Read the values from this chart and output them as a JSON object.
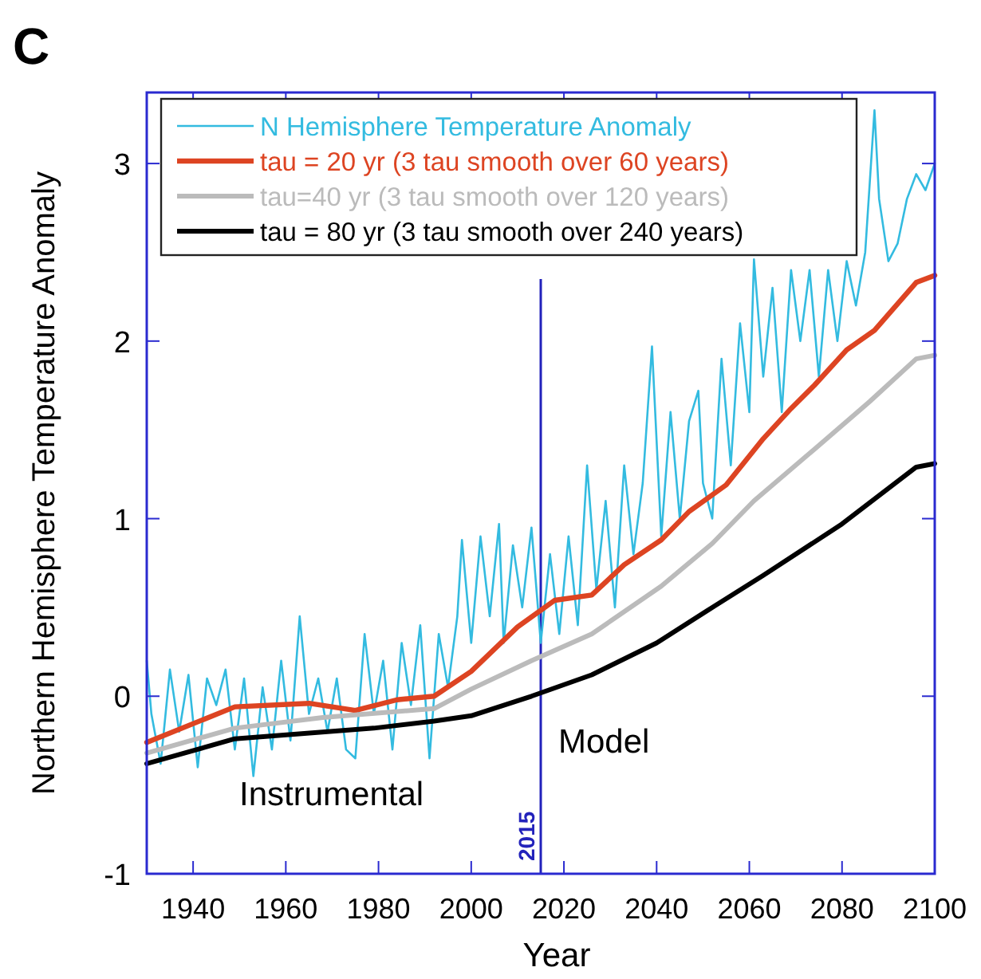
{
  "chart_data": {
    "type": "line",
    "title": "C",
    "xlabel": "Year",
    "ylabel": "Northern Hemisphere Temperature Anomaly",
    "xlim": [
      1930,
      2100
    ],
    "xticks": [
      1940,
      1960,
      1980,
      2000,
      2020,
      2040,
      2060,
      2080,
      2100
    ],
    "ylim": [
      -1,
      3.4
    ],
    "yticks": [
      -1,
      0,
      1,
      2,
      3
    ],
    "legend": "top left",
    "grid": false,
    "line_style": "solid",
    "ref_lines": [
      {
        "axis": "x",
        "value": 2015,
        "label": "2015",
        "color": "#2222bb"
      }
    ],
    "annotations": [
      "Instrumental",
      "Model"
    ],
    "series": [
      {
        "name": "N Hemisphere Temperature Anomaly",
        "color": "#33bbe0",
        "x": [
          1930,
          1931,
          1933,
          1935,
          1937,
          1939,
          1941,
          1943,
          1945,
          1947,
          1949,
          1951,
          1953,
          1955,
          1957,
          1959,
          1961,
          1963,
          1965,
          1967,
          1969,
          1971,
          1973,
          1975,
          1977,
          1979,
          1981,
          1983,
          1985,
          1987,
          1989,
          1991,
          1993,
          1995,
          1997,
          1998,
          2000,
          2002,
          2004,
          2006,
          2007,
          2009,
          2011,
          2013,
          2015,
          2017,
          2019,
          2021,
          2023,
          2025,
          2027,
          2029,
          2031,
          2033,
          2035,
          2037,
          2039,
          2041,
          2043,
          2045,
          2047,
          2049,
          2050,
          2052,
          2054,
          2056,
          2058,
          2060,
          2061,
          2063,
          2065,
          2067,
          2069,
          2071,
          2073,
          2075,
          2077,
          2079,
          2081,
          2083,
          2085,
          2087,
          2088,
          2090,
          2092,
          2094,
          2096,
          2098,
          2100
        ],
        "values": [
          0.2,
          -0.1,
          -0.38,
          0.15,
          -0.2,
          0.12,
          -0.4,
          0.1,
          -0.05,
          0.15,
          -0.3,
          0.1,
          -0.45,
          0.05,
          -0.3,
          0.2,
          -0.25,
          0.45,
          -0.1,
          0.1,
          -0.2,
          0.1,
          -0.3,
          -0.35,
          0.35,
          -0.1,
          0.2,
          -0.3,
          0.3,
          -0.05,
          0.4,
          -0.35,
          0.35,
          0.05,
          0.45,
          0.88,
          0.3,
          0.9,
          0.45,
          0.97,
          0.3,
          0.85,
          0.5,
          0.95,
          0.3,
          0.8,
          0.35,
          0.9,
          0.4,
          1.3,
          0.6,
          1.1,
          0.5,
          1.3,
          0.8,
          1.2,
          1.97,
          0.9,
          1.6,
          1.0,
          1.55,
          1.72,
          1.2,
          1.0,
          1.9,
          1.3,
          2.1,
          1.6,
          2.46,
          1.8,
          2.3,
          1.6,
          2.4,
          2.0,
          2.4,
          1.8,
          2.4,
          2.0,
          2.45,
          2.2,
          2.5,
          3.3,
          2.8,
          2.45,
          2.55,
          2.8,
          2.94,
          2.85,
          3.0
        ]
      },
      {
        "name": "tau = 20 yr (3 tau smooth over 60 years)",
        "color": "#dd4422",
        "x": [
          1930,
          1949,
          1965,
          1975,
          1984,
          1992,
          2000,
          2010,
          2018,
          2026,
          2033,
          2041,
          2047,
          2055,
          2063,
          2069,
          2074,
          2081,
          2087,
          2096,
          2100
        ],
        "values": [
          -0.26,
          -0.06,
          -0.04,
          -0.08,
          -0.02,
          0,
          0.14,
          0.39,
          0.54,
          0.57,
          0.74,
          0.88,
          1.04,
          1.19,
          1.45,
          1.62,
          1.75,
          1.95,
          2.06,
          2.33,
          2.37
        ]
      },
      {
        "name": "tau=40 yr (3 tau smooth over 120 years)",
        "color": "#bbbbbb",
        "x": [
          1930,
          1949,
          1968,
          1992,
          2000,
          2013,
          2026,
          2041,
          2052,
          2061,
          2074,
          2086,
          2096,
          2100
        ],
        "values": [
          -0.32,
          -0.18,
          -0.12,
          -0.07,
          0.04,
          0.2,
          0.35,
          0.62,
          0.86,
          1.1,
          1.39,
          1.66,
          1.9,
          1.92
        ]
      },
      {
        "name": "tau = 80 yr (3 tau smooth over 240 years)",
        "color": "#000000",
        "x": [
          1930,
          1949,
          1979,
          1992,
          2000,
          2013,
          2026,
          2040,
          2052,
          2063,
          2080,
          2096,
          2100
        ],
        "values": [
          -0.38,
          -0.24,
          -0.18,
          -0.14,
          -0.11,
          0,
          0.12,
          0.3,
          0.5,
          0.68,
          0.97,
          1.29,
          1.31
        ]
      }
    ]
  }
}
